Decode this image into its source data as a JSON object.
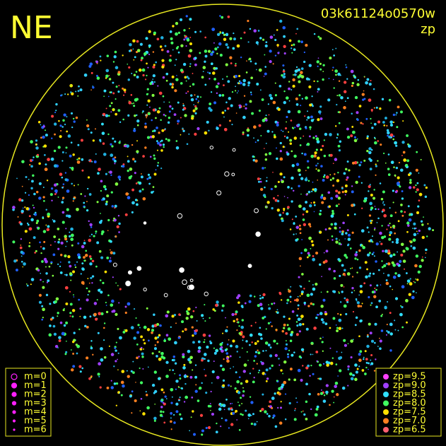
{
  "header": {
    "direction": "NE",
    "frame_id": "03k61124o0570w",
    "mode": "zp"
  },
  "magnitude_legend": [
    "m=0",
    "m=1",
    "m=2",
    "m=3",
    "m=4",
    "m=5",
    "m=6"
  ],
  "zp_legend": [
    {
      "label": "zp=9.5",
      "color": "#ff40ff"
    },
    {
      "label": "zp=9.0",
      "color": "#a040ff"
    },
    {
      "label": "zp=8.5",
      "color": "#30e0ff"
    },
    {
      "label": "zp=8.0",
      "color": "#40ff60"
    },
    {
      "label": "zp=7.5",
      "color": "#ffe000"
    },
    {
      "label": "zp=7.0",
      "color": "#ff8020"
    },
    {
      "label": "zp=6.5",
      "color": "#ff6070"
    }
  ]
}
